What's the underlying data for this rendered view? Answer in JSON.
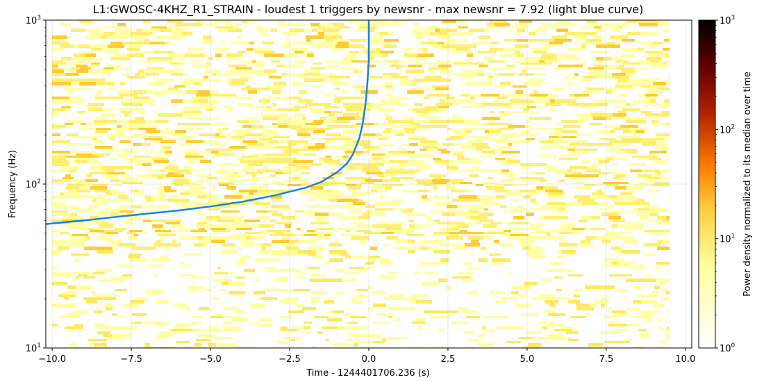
{
  "chart_data": {
    "type": "heatmap",
    "title": "L1:GWOSC-4KHZ_R1_STRAIN - loudest 1 triggers by newsnr - max newsnr = 7.92 (light blue curve)",
    "xlabel": "Time - 1244401706.236 (s)",
    "ylabel": "Frequency (Hz)",
    "xlim": [
      -10.2,
      10.2
    ],
    "ylim": [
      10,
      1000
    ],
    "yscale": "log",
    "x_ticks": [
      -10.0,
      -7.5,
      -5.0,
      -2.5,
      0.0,
      2.5,
      5.0,
      7.5,
      10.0
    ],
    "x_tick_labels": [
      "−10.0",
      "−7.5",
      "−5.0",
      "−2.5",
      "0.0",
      "2.5",
      "5.0",
      "7.5",
      "10.0"
    ],
    "y_ticks": [
      10,
      100,
      1000
    ],
    "y_tick_base": "10",
    "y_tick_exponents": [
      "1",
      "2",
      "3"
    ],
    "grid": true,
    "heatmap_time_range": [
      -10.0,
      9.5
    ],
    "colorbar": {
      "label": "Power density normalized to its median over time",
      "scale": "log",
      "range": [
        1,
        1000
      ],
      "ticks": [
        1,
        10,
        100,
        1000
      ],
      "tick_base": "10",
      "tick_exponents": [
        "0",
        "1",
        "2",
        "3"
      ],
      "colormap": "afmhot_r",
      "colors": [
        "#ffffff",
        "#ffff80",
        "#ff8000",
        "#800000",
        "#000000"
      ]
    },
    "series": [
      {
        "type": "line",
        "color": "#1a80e6",
        "x": [
          -10.2,
          -9.0,
          -8.0,
          -7.0,
          -6.0,
          -5.0,
          -4.0,
          -3.0,
          -2.0,
          -1.5,
          -1.0,
          -0.7,
          -0.5,
          -0.3,
          -0.2,
          -0.1,
          -0.05,
          0.0,
          0.0
        ],
        "y": [
          57,
          60,
          63,
          66,
          69,
          73,
          78,
          85,
          95,
          103,
          118,
          133,
          152,
          190,
          230,
          310,
          400,
          570,
          1000
        ]
      }
    ]
  }
}
